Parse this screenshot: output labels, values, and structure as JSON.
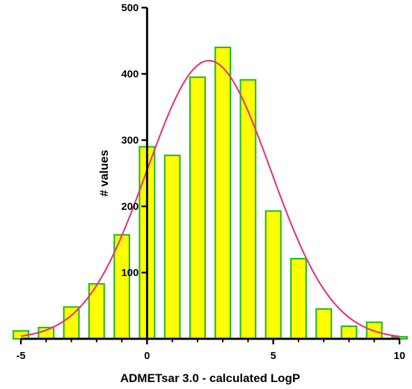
{
  "chart_data": {
    "type": "bar",
    "title": "",
    "xlabel": "ADMETsar 3.0 - calculated LogP",
    "ylabel": "# values",
    "xlim": [
      -5,
      10
    ],
    "ylim": [
      0,
      500
    ],
    "x_ticks": [
      -5,
      0,
      5,
      10
    ],
    "y_ticks": [
      100,
      200,
      300,
      400,
      500
    ],
    "bin_width": 1,
    "x": [
      -5,
      -4,
      -3,
      -2,
      -1,
      0,
      1,
      2,
      3,
      4,
      5,
      6,
      7,
      8,
      9,
      10
    ],
    "values": [
      12,
      17,
      48,
      83,
      157,
      290,
      277,
      395,
      440,
      391,
      193,
      121,
      45,
      19,
      25,
      3
    ],
    "fit_curve": {
      "type": "gaussian",
      "peak": 420,
      "mean": 2.45,
      "sd": 2.45
    },
    "colors": {
      "bar_fill": "#ffff00",
      "bar_stroke": "#22bb22",
      "curve": "#e8337a",
      "axis": "#000000"
    },
    "grid": false
  }
}
